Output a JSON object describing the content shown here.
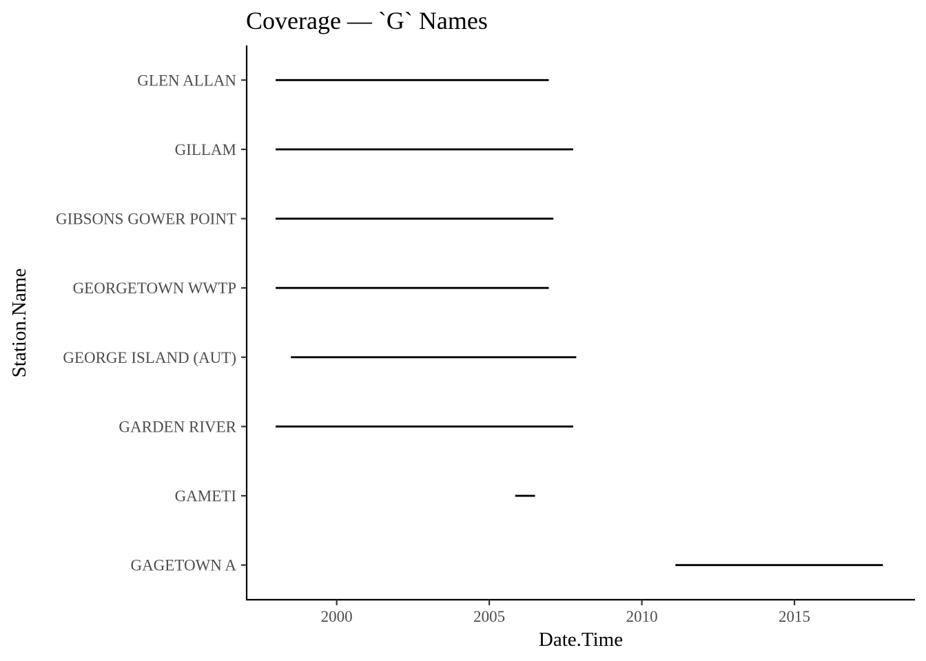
{
  "chart_data": {
    "type": "segment",
    "title": "Coverage — `G` Names",
    "xlabel": "Date.Time",
    "ylabel": "Station.Name",
    "x_ticks": [
      2000,
      2005,
      2010,
      2015
    ],
    "x_tick_labels": [
      "2000",
      "2005",
      "2010",
      "2015"
    ],
    "xlim": [
      1997.05,
      2018.95
    ],
    "grid": false,
    "line_color": "#000000",
    "categories": [
      "GAGETOWN A",
      "GAMETI",
      "GARDEN RIVER",
      "GEORGE ISLAND (AUT)",
      "GEORGETOWN WWTP",
      "GIBSONS GOWER POINT",
      "GILLAM",
      "GLEN ALLAN"
    ],
    "segments": [
      {
        "station": "GAGETOWN A",
        "start": 2011.1,
        "end": 2017.9
      },
      {
        "station": "GAMETI",
        "start": 2005.85,
        "end": 2006.5
      },
      {
        "station": "GARDEN RIVER",
        "start": 1998.0,
        "end": 2007.75
      },
      {
        "station": "GEORGE ISLAND (AUT)",
        "start": 1998.5,
        "end": 2007.85
      },
      {
        "station": "GEORGETOWN WWTP",
        "start": 1998.0,
        "end": 2006.95
      },
      {
        "station": "GIBSONS GOWER POINT",
        "start": 1998.0,
        "end": 2007.1
      },
      {
        "station": "GILLAM",
        "start": 1998.0,
        "end": 2007.75
      },
      {
        "station": "GLEN ALLAN",
        "start": 1998.0,
        "end": 2006.95
      }
    ]
  }
}
